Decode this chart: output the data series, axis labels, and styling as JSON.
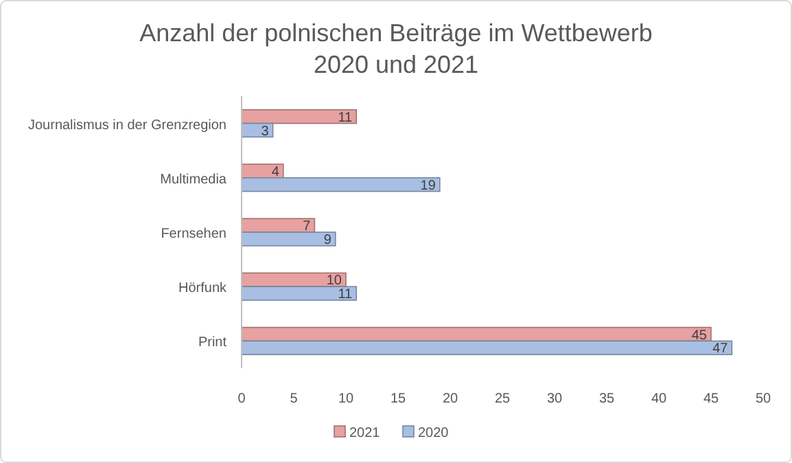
{
  "chart_data": {
    "type": "bar",
    "orientation": "horizontal",
    "title": "Anzahl der polnischen Beiträge im Wettbewerb\n2020 und 2021",
    "categories": [
      "Journalismus in der Grenzregion",
      "Multimedia",
      "Fernsehen",
      "Hörfunk",
      "Print"
    ],
    "series": [
      {
        "name": "2021",
        "color": "#e6a1a0",
        "values": [
          11,
          4,
          7,
          10,
          45
        ]
      },
      {
        "name": "2020",
        "color": "#a8bfe3",
        "values": [
          3,
          19,
          9,
          11,
          47
        ]
      }
    ],
    "xlim": [
      0,
      50
    ],
    "xticks": [
      0,
      5,
      10,
      15,
      20,
      25,
      30,
      35,
      40,
      45,
      50
    ],
    "data_labels": true,
    "legend": "bottom",
    "grid": false
  }
}
